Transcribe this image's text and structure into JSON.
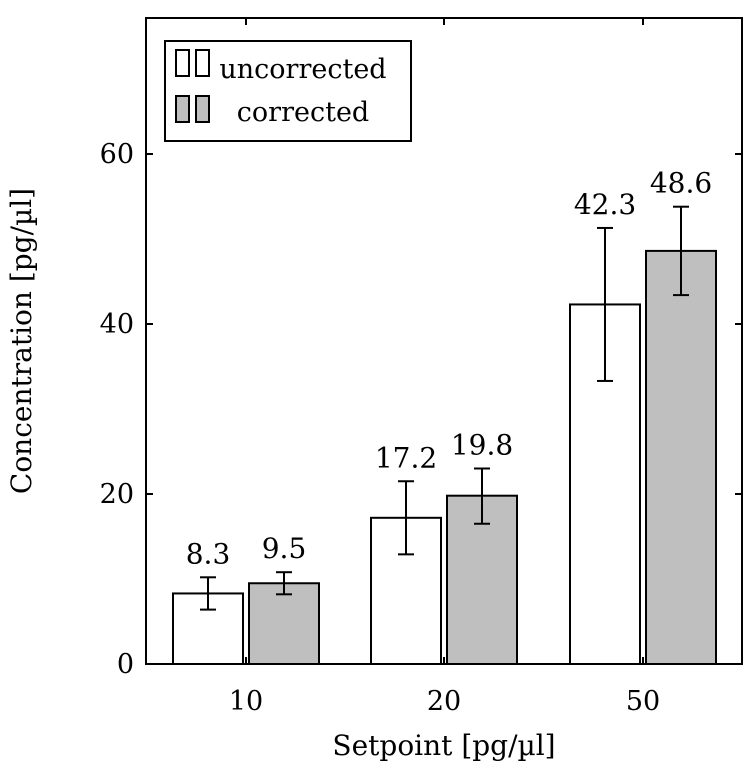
{
  "chart_data": {
    "type": "bar",
    "title": "",
    "xlabel": "Setpoint [pg/µl]",
    "ylabel": "Concentration [pg/µl]",
    "categories": [
      "10",
      "20",
      "50"
    ],
    "ylim": [
      0,
      76
    ],
    "yticks": [
      0,
      20,
      40,
      60
    ],
    "grid": false,
    "legend_position": "top-left",
    "series": [
      {
        "name": "uncorrected",
        "color": "#ffffff",
        "values": [
          8.3,
          17.2,
          42.3
        ],
        "value_labels": [
          "8.3",
          "17.2",
          "42.3"
        ],
        "error": [
          [
            6.4,
            10.2
          ],
          [
            12.9,
            21.5
          ],
          [
            33.3,
            51.3
          ]
        ]
      },
      {
        "name": "corrected",
        "color": "#bfbfbf",
        "values": [
          9.5,
          19.8,
          48.6
        ],
        "value_labels": [
          "9.5",
          "19.8",
          "48.6"
        ],
        "error": [
          [
            8.2,
            10.8
          ],
          [
            16.5,
            23.0
          ],
          [
            43.4,
            53.8
          ]
        ]
      }
    ]
  }
}
